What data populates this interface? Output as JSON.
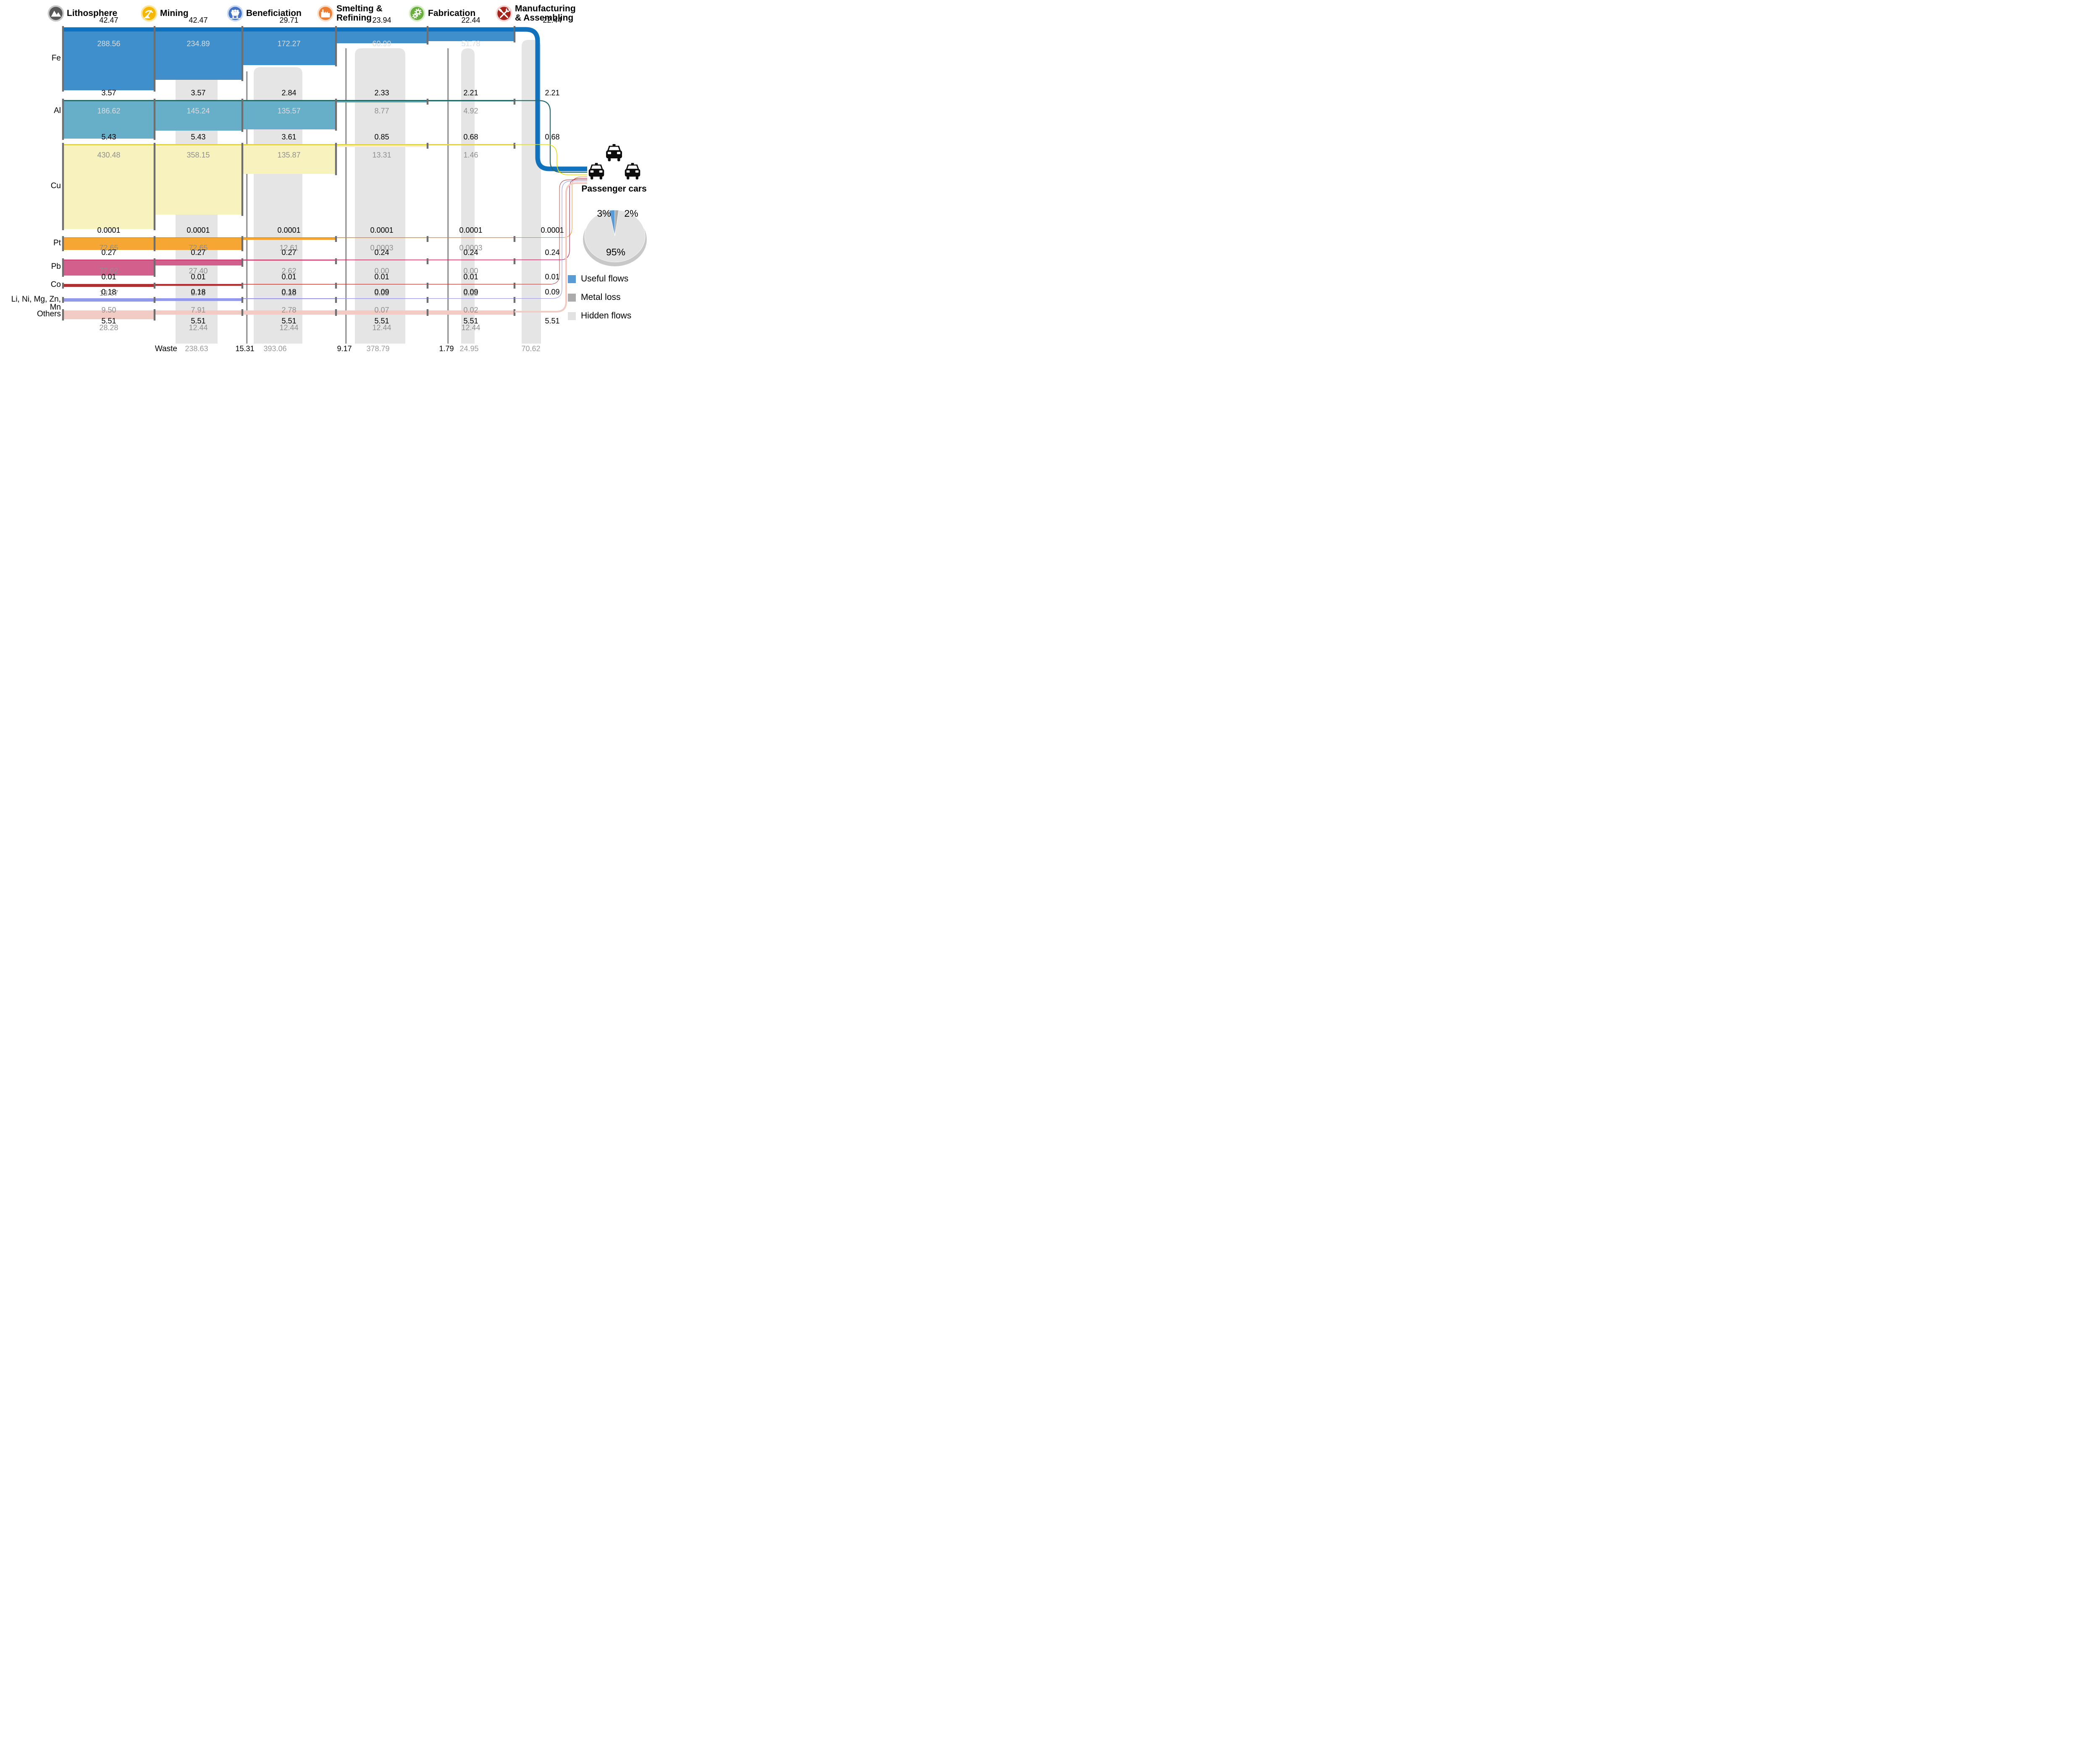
{
  "chart_data": {
    "type": "sankey",
    "stages": [
      {
        "label": "Lithosphere",
        "icon": "mountain-icon",
        "color": "#595959",
        "ring": "#C9C9C9"
      },
      {
        "label": "Mining",
        "icon": "pickaxe-icon",
        "color": "#F5B700",
        "ring": "#FBE49C"
      },
      {
        "label": "Beneficiation",
        "icon": "minecart-icon",
        "color": "#4472C4",
        "ring": "#CBD9F2"
      },
      {
        "label": "Smelting & Refining",
        "icon": "factory-icon",
        "color": "#ED7D31",
        "ring": "#FADDC8"
      },
      {
        "label": "Fabrication",
        "icon": "gears-icon",
        "color": "#6AAE3F",
        "ring": "#D8ECC8"
      },
      {
        "label": "Manufacturing & Assembling",
        "icon": "tools-icon",
        "color": "#A5231A",
        "ring": "#F4D3D0"
      }
    ],
    "rows": [
      {
        "label": "Fe",
        "useful_color": "#1072BC",
        "hidden_color": "#3E8FCB",
        "useful": [
          "42.47",
          "42.47",
          "29.71",
          "23.94",
          "22.44",
          "22.44"
        ],
        "hidden": [
          "288.56",
          "234.89",
          "172.27",
          "60.99",
          "51.78"
        ]
      },
      {
        "label": "Al",
        "useful_color": "#256969",
        "hidden_color": "#67AFC8",
        "useful": [
          "3.57",
          "3.57",
          "2.84",
          "2.33",
          "2.21",
          "2.21"
        ],
        "hidden": [
          "186.62",
          "145.24",
          "135.57",
          "8.77",
          "4.92"
        ]
      },
      {
        "label": "Cu",
        "useful_color": "#E6E100",
        "hidden_color": "#F8F2BE",
        "useful": [
          "5.43",
          "5.43",
          "3.61",
          "0.85",
          "0.68",
          "0.68"
        ],
        "hidden": [
          "430.48",
          "358.15",
          "135.87",
          "13.31",
          "1.46"
        ]
      },
      {
        "label": "Pt",
        "useful_color": "#E08000",
        "hidden_color": "#F6A632",
        "useful": [
          "0.0001",
          "0.0001",
          "0.0001",
          "0.0001",
          "0.0001",
          "0.0001"
        ],
        "hidden": [
          "72.65",
          "72.65",
          "12.61",
          "0.0003",
          "0.0003"
        ]
      },
      {
        "label": "Pb",
        "useful_color": "#C21E56",
        "hidden_color": "#D35F8D",
        "useful": [
          "0.27",
          "0.27",
          "0.27",
          "0.24",
          "0.24",
          "0.24"
        ],
        "hidden": [
          "77.62",
          "27.40",
          "2.62",
          "0.00",
          "0.00"
        ]
      },
      {
        "label": "Co",
        "useful_color": "#8B1A1A",
        "hidden_color": "#B03030",
        "useful": [
          "0.01",
          "0.01",
          "0.01",
          "0.01",
          "0.01",
          "0.01"
        ],
        "hidden": [
          "12.37",
          "8.76",
          "0.20",
          "0.00",
          "0.00"
        ]
      },
      {
        "label": "Li, Ni, Mg, Zn, Mn",
        "useful_color": "#5A64D8",
        "hidden_color": "#9199EA",
        "useful": [
          "0.18",
          "0.18",
          "0.18",
          "0.09",
          "0.09",
          "0.09"
        ],
        "hidden": [
          "9.50",
          "7.91",
          "2.78",
          "0.07",
          "0.02"
        ]
      },
      {
        "label": "Others",
        "useful_color": "#E8A49C",
        "hidden_color": "#F2CBC5",
        "useful": [
          "5.51",
          "5.51",
          "5.51",
          "5.51",
          "5.51",
          "5.51"
        ],
        "hidden": [
          "28.28",
          "12.44",
          "12.44",
          "12.44",
          "12.44"
        ]
      }
    ],
    "waste": {
      "label": "Waste",
      "values": [
        {
          "text": "238.63",
          "kind": "hidden"
        },
        {
          "text": "15.31",
          "kind": "loss"
        },
        {
          "text": "393.06",
          "kind": "hidden"
        },
        {
          "text": "9.17",
          "kind": "loss"
        },
        {
          "text": "378.79",
          "kind": "hidden"
        },
        {
          "text": "1.79",
          "kind": "loss"
        },
        {
          "text": "24.95",
          "kind": "hidden"
        },
        {
          "text": "70.62",
          "kind": "hidden"
        }
      ]
    },
    "destination": {
      "label": "Passenger cars",
      "icon": "car-icon"
    },
    "pie": {
      "type": "pie",
      "slices": [
        {
          "label": "3%",
          "value": 3,
          "color": "#5B9BD5",
          "name": "useful-flows"
        },
        {
          "label": "2%",
          "value": 2,
          "color": "#ABABAB",
          "name": "metal-loss"
        },
        {
          "label": "95%",
          "value": 95,
          "color": "#E2E2E2",
          "name": "hidden-flows"
        }
      ],
      "legend": [
        {
          "label": "Useful flows",
          "color": "#5B9BD5"
        },
        {
          "label": "Metal loss",
          "color": "#ABABAB"
        },
        {
          "label": "Hidden flows",
          "color": "#E2E2E2"
        }
      ]
    }
  }
}
